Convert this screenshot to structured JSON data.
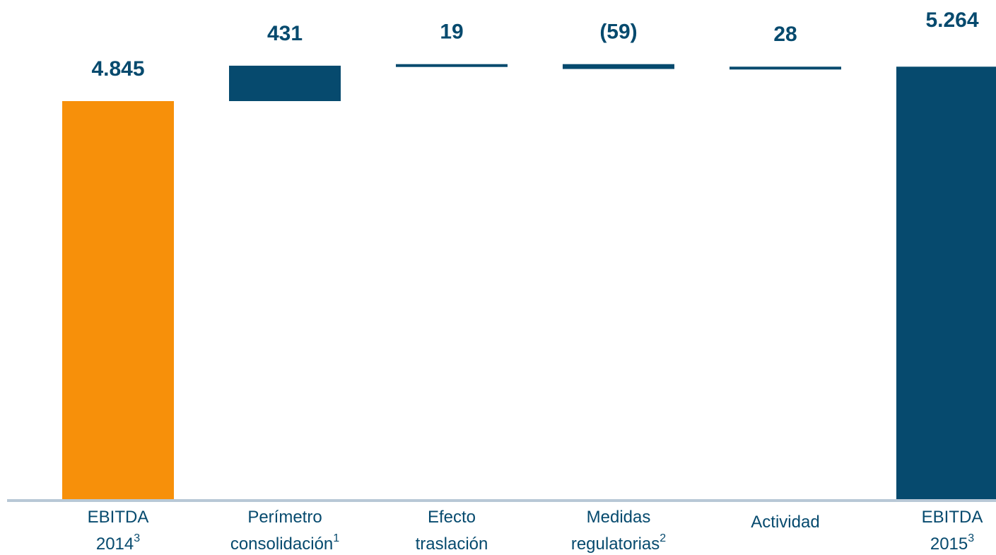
{
  "chart_data": {
    "type": "waterfall",
    "categories": [
      "EBITDA 2014",
      "Perímetro consolidación",
      "Efecto traslación",
      "Medidas regulatorias",
      "Actividad",
      "EBITDA 2015"
    ],
    "category_notes": [
      "3",
      "1",
      null,
      "2",
      null,
      "3"
    ],
    "values": [
      4845,
      431,
      19,
      -59,
      28,
      5264
    ],
    "value_labels": [
      "4.845",
      "431",
      "19",
      "(59)",
      "28",
      "5.264"
    ],
    "colors": [
      "#f7900a",
      "#064a6e",
      "#064a6e",
      "#064a6e",
      "#064a6e",
      "#064a6e"
    ]
  }
}
